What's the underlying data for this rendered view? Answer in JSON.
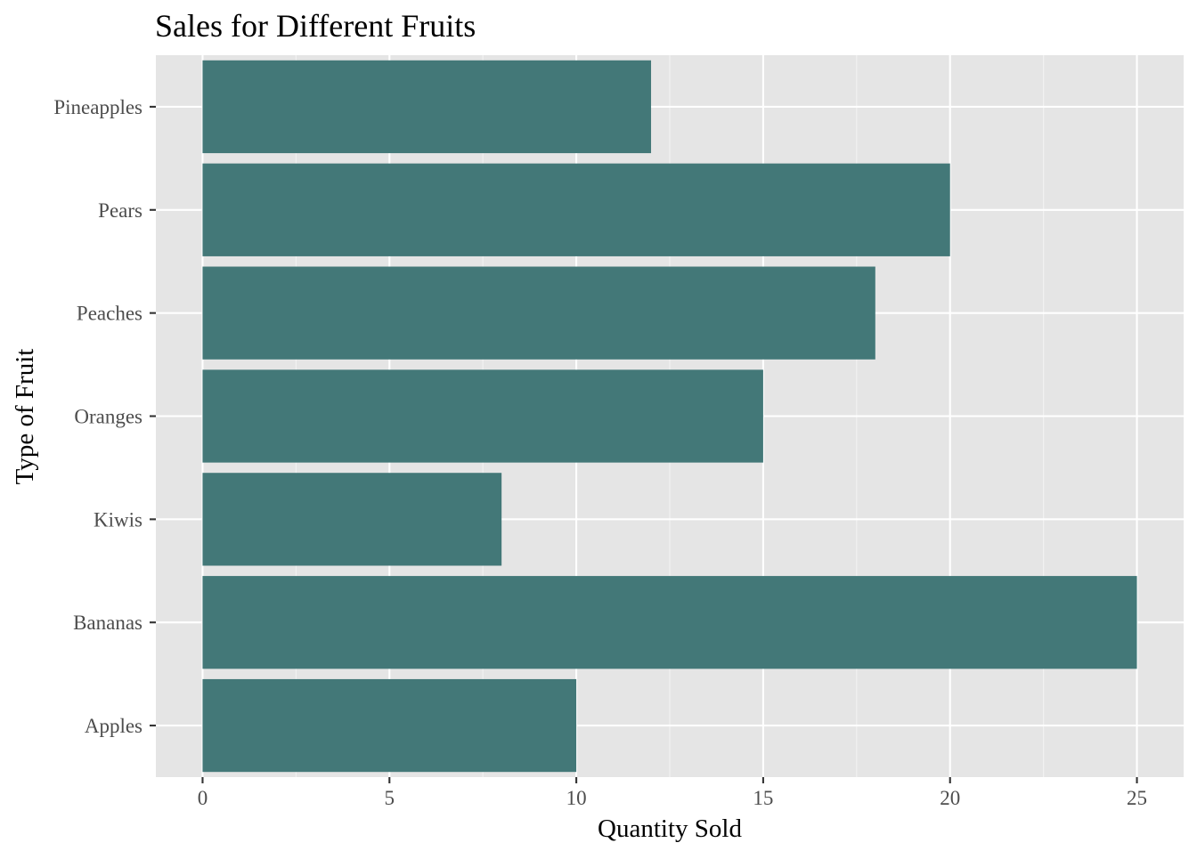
{
  "chart_data": {
    "type": "bar",
    "orientation": "horizontal",
    "title": "Sales for Different Fruits",
    "xlabel": "Quantity Sold",
    "ylabel": "Type of Fruit",
    "categories": [
      "Apples",
      "Bananas",
      "Kiwis",
      "Oranges",
      "Peaches",
      "Pears",
      "Pineapples"
    ],
    "values": [
      10,
      25,
      8,
      15,
      18,
      20,
      12
    ],
    "xlim": [
      -1.25,
      26.25
    ],
    "x_ticks": [
      0,
      5,
      10,
      15,
      20,
      25
    ],
    "grid": true,
    "legend": "none",
    "colors": {
      "bar": "#437878",
      "panel": "#e5e5e5",
      "grid_major": "#ffffff",
      "grid_minor": "#f2f2f2",
      "tick": "#333333"
    }
  }
}
